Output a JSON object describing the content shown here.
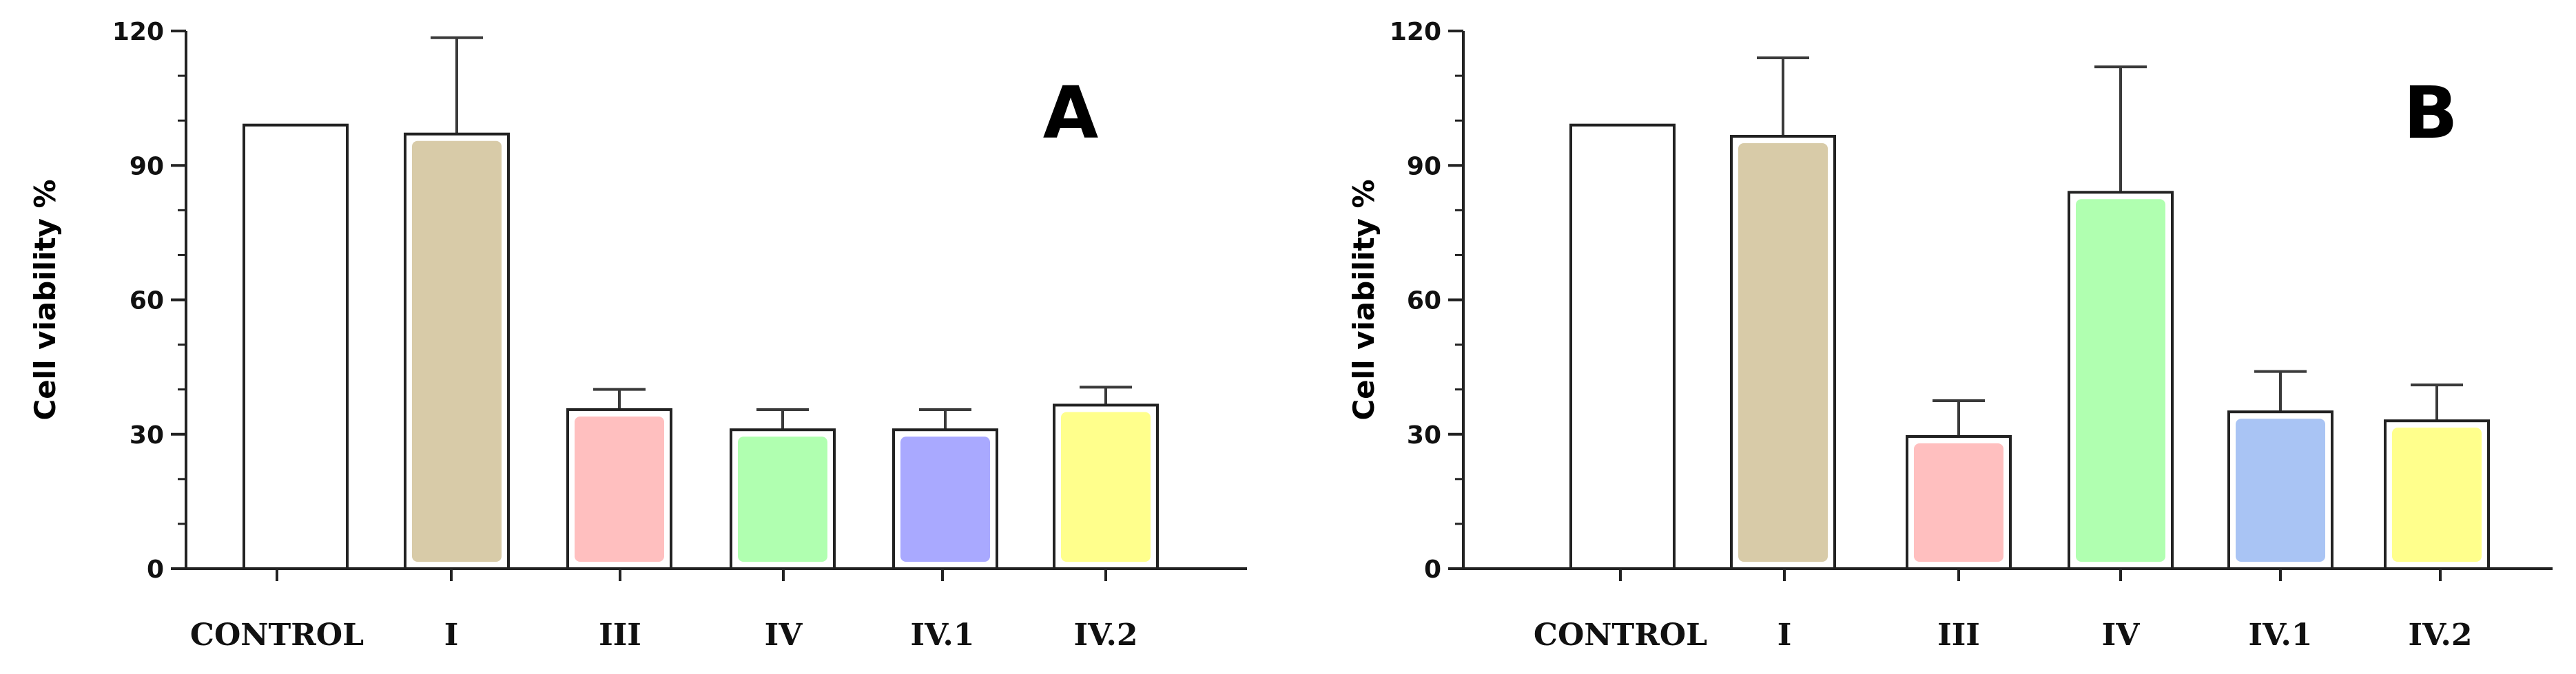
{
  "chart_data": [
    {
      "type": "bar",
      "panel_label": "A",
      "ylabel": "Cell viability %",
      "xlabel": "",
      "ylim": [
        0,
        120
      ],
      "yticks": [
        0,
        30,
        60,
        90,
        120
      ],
      "categories": [
        "CONTROL",
        "I",
        "III",
        "IV",
        "IV.1",
        "IV.2"
      ],
      "values": [
        99,
        97,
        35.5,
        31,
        31,
        36.5
      ],
      "error_upper": [
        0,
        21.5,
        4.5,
        4.5,
        4.5,
        4
      ],
      "colors": [
        "#ffffff",
        "#d8cba8",
        "#ffbfbf",
        "#b0ffb0",
        "#a9a9ff",
        "#ffff8c"
      ]
    },
    {
      "type": "bar",
      "panel_label": "B",
      "ylabel": "Cell viability %",
      "xlabel": "",
      "ylim": [
        0,
        120
      ],
      "yticks": [
        0,
        30,
        60,
        90,
        120
      ],
      "categories": [
        "CONTROL",
        "I",
        "III",
        "IV",
        "IV.1",
        "IV.2"
      ],
      "values": [
        99,
        96.5,
        29.5,
        84,
        35,
        33
      ],
      "error_upper": [
        0,
        17.5,
        8,
        28,
        9,
        8
      ],
      "colors": [
        "#ffffff",
        "#d8cba8",
        "#ffbfbf",
        "#b0ffb0",
        "#a9c4f4",
        "#ffff8c"
      ]
    }
  ]
}
